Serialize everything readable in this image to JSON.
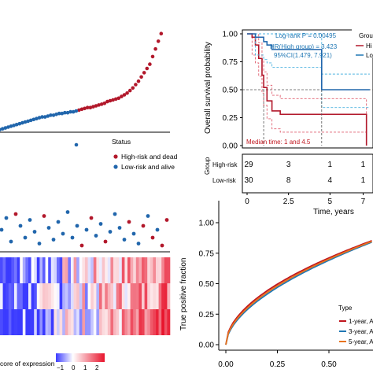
{
  "colors": {
    "high": "#b2182b",
    "low": "#2166ac",
    "low_light": "#1f9bd7",
    "year1": "#c0161e",
    "year3": "#1f77b4",
    "year5": "#e8731d",
    "heat_low": "#3b3bff",
    "heat_high": "#e8142c"
  },
  "risk_panel": {
    "status_title": "Status",
    "legend": [
      "High-risk and dead",
      "Low-risk and alive"
    ]
  },
  "heatmap_panel": {
    "colorbar_title": "core of expression",
    "colorbar_ticks": [
      "−1",
      "0",
      "1",
      "2"
    ]
  },
  "km_panel": {
    "ylabel": "Overall survival probability",
    "xlabel": "Time, years",
    "y_ticks": [
      "0.00",
      "0.25",
      "0.50",
      "0.75",
      "1.00"
    ],
    "x_ticks": [
      "0",
      "2.5",
      "5",
      "7"
    ],
    "annot_logrank": "Log-rank P = 0.00495",
    "annot_hr": "HR(High group) = 3.423",
    "annot_ci": "95%CI(1.479, 7.921)",
    "annot_median": "Median time: 1 and 4.5",
    "legend_title": "Grou",
    "legend_items": [
      "Hi",
      "Lo"
    ],
    "risk_table_ylabel": "Group",
    "risk_rows": [
      {
        "label": "High-risk",
        "counts": [
          "29",
          "3",
          "1",
          "1"
        ]
      },
      {
        "label": "Low-risk",
        "counts": [
          "30",
          "8",
          "4",
          "1"
        ]
      }
    ]
  },
  "roc_panel": {
    "ylabel": "True positive fraction",
    "y_ticks": [
      "0.00",
      "0.25",
      "0.50",
      "0.75",
      "1.00"
    ],
    "x_ticks": [
      "0.00",
      "0.25",
      "0.50"
    ],
    "legend_title": "Type",
    "legend_items": [
      "1-year, A",
      "3-year, A",
      "5-year, A"
    ]
  },
  "chart_data": [
    {
      "type": "scatter",
      "panel": "risk-score-distribution",
      "series": [
        {
          "name": "High-risk and dead",
          "x": [
            30,
            31,
            32,
            33,
            34,
            35,
            36,
            37,
            38,
            39,
            40,
            41,
            42,
            43,
            44,
            45,
            46,
            47,
            48,
            49,
            50,
            51,
            52,
            53,
            54,
            55,
            56,
            57,
            58,
            59
          ],
          "y": [
            0.64,
            0.65,
            0.66,
            0.67,
            0.67,
            0.68,
            0.69,
            0.7,
            0.71,
            0.72,
            0.74,
            0.75,
            0.76,
            0.77,
            0.78,
            0.8,
            0.82,
            0.84,
            0.87,
            0.9,
            0.94,
            0.98,
            1.03,
            1.08,
            1.13,
            1.18,
            1.27,
            1.36,
            1.45,
            1.54
          ]
        },
        {
          "name": "Low-risk and alive",
          "x": [
            1,
            2,
            3,
            4,
            5,
            6,
            7,
            8,
            9,
            10,
            11,
            12,
            13,
            14,
            15,
            16,
            17,
            18,
            19,
            20,
            21,
            22,
            23,
            24,
            25,
            26,
            27,
            28,
            29
          ],
          "y": [
            0.4,
            0.41,
            0.42,
            0.43,
            0.44,
            0.45,
            0.46,
            0.47,
            0.48,
            0.49,
            0.5,
            0.51,
            0.52,
            0.53,
            0.54,
            0.55,
            0.56,
            0.56,
            0.57,
            0.58,
            0.58,
            0.59,
            0.6,
            0.6,
            0.61,
            0.61,
            0.62,
            0.62,
            0.63
          ]
        }
      ]
    },
    {
      "type": "scatter",
      "panel": "survival-status",
      "points": [
        {
          "x": 1,
          "y": 0.5,
          "status": "low"
        },
        {
          "x": 2,
          "y": 0.8,
          "status": "low"
        },
        {
          "x": 3,
          "y": 0.2,
          "status": "low"
        },
        {
          "x": 4,
          "y": 0.9,
          "status": "high"
        },
        {
          "x": 5,
          "y": 0.6,
          "status": "low"
        },
        {
          "x": 6,
          "y": 0.3,
          "status": "low"
        },
        {
          "x": 7,
          "y": 0.75,
          "status": "low"
        },
        {
          "x": 8,
          "y": 0.45,
          "status": "low"
        },
        {
          "x": 9,
          "y": 0.15,
          "status": "low"
        },
        {
          "x": 10,
          "y": 0.85,
          "status": "high"
        },
        {
          "x": 11,
          "y": 0.55,
          "status": "low"
        },
        {
          "x": 12,
          "y": 0.25,
          "status": "low"
        },
        {
          "x": 13,
          "y": 0.7,
          "status": "low"
        },
        {
          "x": 14,
          "y": 0.4,
          "status": "low"
        },
        {
          "x": 15,
          "y": 0.95,
          "status": "low"
        },
        {
          "x": 16,
          "y": 0.3,
          "status": "low"
        },
        {
          "x": 17,
          "y": 0.6,
          "status": "low"
        },
        {
          "x": 18,
          "y": 0.1,
          "status": "high"
        },
        {
          "x": 19,
          "y": 0.5,
          "status": "low"
        },
        {
          "x": 20,
          "y": 0.8,
          "status": "high"
        },
        {
          "x": 21,
          "y": 0.35,
          "status": "low"
        },
        {
          "x": 22,
          "y": 0.65,
          "status": "low"
        },
        {
          "x": 23,
          "y": 0.2,
          "status": "high"
        },
        {
          "x": 24,
          "y": 0.45,
          "status": "low"
        },
        {
          "x": 25,
          "y": 0.9,
          "status": "low"
        },
        {
          "x": 26,
          "y": 0.55,
          "status": "low"
        },
        {
          "x": 27,
          "y": 0.25,
          "status": "low"
        },
        {
          "x": 28,
          "y": 0.7,
          "status": "high"
        },
        {
          "x": 29,
          "y": 0.4,
          "status": "low"
        },
        {
          "x": 30,
          "y": 0.15,
          "status": "low"
        },
        {
          "x": 31,
          "y": 0.6,
          "status": "high"
        },
        {
          "x": 32,
          "y": 0.85,
          "status": "low"
        },
        {
          "x": 33,
          "y": 0.3,
          "status": "high"
        },
        {
          "x": 34,
          "y": 0.5,
          "status": "low"
        },
        {
          "x": 35,
          "y": 0.1,
          "status": "high"
        },
        {
          "x": 36,
          "y": 0.75,
          "status": "high"
        }
      ]
    },
    {
      "type": "line",
      "panel": "kaplan-meier",
      "xlim": [
        0,
        7.5
      ],
      "ylim": [
        0,
        1
      ],
      "series": [
        {
          "name": "High-risk",
          "x": [
            0,
            0.3,
            0.5,
            0.7,
            0.9,
            1.0,
            1.2,
            1.5,
            2.0,
            3.0,
            7.0,
            7.2
          ],
          "y": [
            1.0,
            0.97,
            0.9,
            0.78,
            0.63,
            0.52,
            0.4,
            0.31,
            0.28,
            0.28,
            0.28,
            0.0
          ]
        },
        {
          "name": "Low-risk",
          "x": [
            0,
            0.5,
            1.0,
            1.2,
            1.5,
            2.0,
            3.0,
            4.5,
            7.0,
            7.4
          ],
          "y": [
            1.0,
            0.97,
            0.93,
            0.9,
            0.86,
            0.86,
            0.86,
            0.5,
            0.5,
            0.5
          ]
        }
      ]
    },
    {
      "type": "line",
      "panel": "time-dependent-roc",
      "xlim": [
        0,
        0.6
      ],
      "ylim": [
        0,
        1
      ],
      "series": [
        {
          "name": "1-year",
          "exponent": 0.52
        },
        {
          "name": "3-year",
          "exponent": 0.56
        },
        {
          "name": "5-year",
          "exponent": 0.54
        }
      ]
    }
  ]
}
